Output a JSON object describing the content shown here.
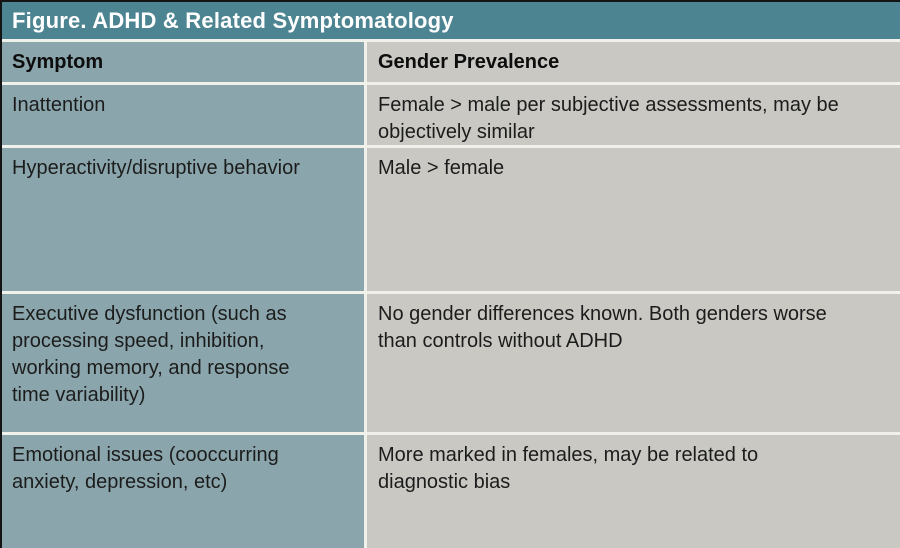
{
  "figure": {
    "title": "Figure. ADHD & Related Symptomatology",
    "columns": [
      "Symptom",
      "Gender Prevalence"
    ],
    "rows": [
      {
        "symptom": "Inattention",
        "prevalence": "Female > male per subjective assessments, may be objectively similar"
      },
      {
        "symptom": "Hyperactivity/disruptive behavior",
        "prevalence": "Male > female"
      },
      {
        "symptom": "Executive dysfunction (such as processing speed, inhibition, working memory, and response time variability)",
        "prevalence": "No gender differences known. Both genders worse than controls without ADHD"
      },
      {
        "symptom": "Emotional issues (cooccurring anxiety, depression, etc)",
        "prevalence": "More marked in females, may be related to diagnostic bias"
      }
    ],
    "colors": {
      "title_bg": "#4c8591",
      "title_text": "#ffffff",
      "symptom_column_bg": "#8aa6ac",
      "prevalence_column_bg": "#c9c8c3",
      "divider": "#f1f1ec",
      "body_text": "#1c1c1c"
    }
  }
}
